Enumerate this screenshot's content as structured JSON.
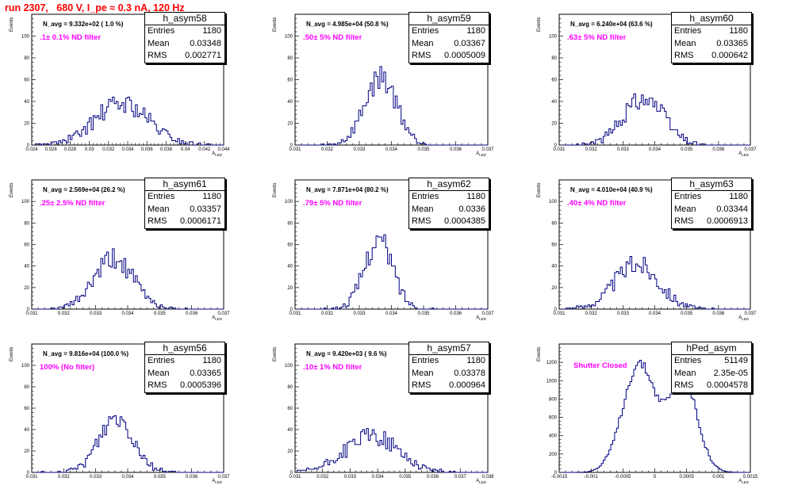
{
  "title": "run 2307,   680 V, I_pe ≈ 0.3 nA, 120 Hz",
  "chart_data": [
    {
      "type": "bar",
      "name": "h_asym58",
      "n_avg": "N_avg = 9.332e+02 ( 1.0 %)",
      "annotation": ".1± 0.1% ND filter",
      "ylabel": "Events",
      "xlabel": "A",
      "xlabel_sub": "LED",
      "stats": {
        "entries": "1180",
        "mean": "0.03348",
        "rms": "0.002771"
      },
      "xlim": [
        0.024,
        0.044
      ],
      "ylim": [
        0,
        120
      ],
      "xticks": [
        0.024,
        0.026,
        0.028,
        0.03,
        0.032,
        0.034,
        0.036,
        0.038,
        0.04,
        0.042,
        0.044
      ],
      "yticks": [
        0,
        20,
        40,
        60,
        80,
        100
      ],
      "gen": {
        "mean": 0.0334,
        "sigma": 0.0028,
        "peak": 38,
        "nbins": 100,
        "seed": 58
      }
    },
    {
      "type": "bar",
      "name": "h_asym59",
      "n_avg": "N_avg = 4.985e+04 (50.8 %)",
      "annotation": ".50± 5% ND filter",
      "ylabel": "Events",
      "xlabel": "A",
      "xlabel_sub": "LED",
      "stats": {
        "entries": "1180",
        "mean": "0.03367",
        "rms": "0.0005009"
      },
      "xlim": [
        0.031,
        0.037
      ],
      "ylim": [
        0,
        120
      ],
      "xticks": [
        0.031,
        0.032,
        0.033,
        0.034,
        0.035,
        0.036,
        0.037
      ],
      "yticks": [
        0,
        20,
        40,
        60,
        80,
        100
      ],
      "gen": {
        "mean": 0.03367,
        "sigma": 0.0005,
        "peak": 62,
        "nbins": 100,
        "seed": 59
      }
    },
    {
      "type": "bar",
      "name": "h_asym60",
      "n_avg": "N_avg = 6.240e+04 (63.6 %)",
      "annotation": ".63± 5% ND filter",
      "ylabel": "Events",
      "xlabel": "A",
      "xlabel_sub": "LED",
      "stats": {
        "entries": "1180",
        "mean": "0.03365",
        "rms": "0.000642"
      },
      "xlim": [
        0.031,
        0.037
      ],
      "ylim": [
        0,
        120
      ],
      "xticks": [
        0.031,
        0.032,
        0.033,
        0.034,
        0.035,
        0.036,
        0.037
      ],
      "yticks": [
        0,
        20,
        40,
        60,
        80,
        100
      ],
      "gen": {
        "mean": 0.03365,
        "sigma": 0.00064,
        "peak": 44,
        "nbins": 100,
        "seed": 60
      }
    },
    {
      "type": "bar",
      "name": "h_asym61",
      "n_avg": "N_avg = 2.569e+04 (26.2 %)",
      "annotation": ".25± 2.5% ND filter",
      "ylabel": "Events",
      "xlabel": "A",
      "xlabel_sub": "LED",
      "stats": {
        "entries": "1180",
        "mean": "0.03357",
        "rms": "0.0006171"
      },
      "xlim": [
        0.031,
        0.037
      ],
      "ylim": [
        0,
        120
      ],
      "xticks": [
        0.031,
        0.032,
        0.033,
        0.034,
        0.035,
        0.036,
        0.037
      ],
      "yticks": [
        0,
        20,
        40,
        60,
        80,
        100
      ],
      "gen": {
        "mean": 0.03357,
        "sigma": 0.00062,
        "peak": 46,
        "nbins": 100,
        "seed": 61
      }
    },
    {
      "type": "bar",
      "name": "h_asym62",
      "n_avg": "N_avg = 7.871e+04 (80.2 %)",
      "annotation": ".79± 5% ND filter",
      "ylabel": "Events",
      "xlabel": "A",
      "xlabel_sub": "LED",
      "stats": {
        "entries": "1180",
        "mean": "0.0336",
        "rms": "0.0004385"
      },
      "xlim": [
        0.031,
        0.037
      ],
      "ylim": [
        0,
        120
      ],
      "xticks": [
        0.031,
        0.032,
        0.033,
        0.034,
        0.035,
        0.036,
        0.037
      ],
      "yticks": [
        0,
        20,
        40,
        60,
        80,
        100
      ],
      "gen": {
        "mean": 0.0336,
        "sigma": 0.00044,
        "peak": 64,
        "nbins": 100,
        "seed": 62
      }
    },
    {
      "type": "bar",
      "name": "h_asym63",
      "n_avg": "N_avg = 4.010e+04 (40.9 %)",
      "annotation": ".40± 4% ND filter",
      "ylabel": "Events",
      "xlabel": "A",
      "xlabel_sub": "LED",
      "stats": {
        "entries": "1180",
        "mean": "0.03344",
        "rms": "0.0006913"
      },
      "xlim": [
        0.031,
        0.037
      ],
      "ylim": [
        0,
        120
      ],
      "xticks": [
        0.031,
        0.032,
        0.033,
        0.034,
        0.035,
        0.036,
        0.037
      ],
      "yticks": [
        0,
        20,
        40,
        60,
        80,
        100
      ],
      "gen": {
        "mean": 0.03344,
        "sigma": 0.00069,
        "peak": 42,
        "nbins": 100,
        "seed": 63
      }
    },
    {
      "type": "bar",
      "name": "h_asym56",
      "n_avg": "N_avg = 9.816e+04 (100.0 %)",
      "annotation": "100% (No filter)",
      "ylabel": "Events",
      "xlabel": "A",
      "xlabel_sub": "LED",
      "stats": {
        "entries": "1180",
        "mean": "0.03365",
        "rms": "0.0005396"
      },
      "xlim": [
        0.031,
        0.037
      ],
      "ylim": [
        0,
        120
      ],
      "xticks": [
        0.031,
        0.032,
        0.033,
        0.034,
        0.035,
        0.036,
        0.037
      ],
      "yticks": [
        0,
        20,
        40,
        60,
        80,
        100
      ],
      "gen": {
        "mean": 0.03365,
        "sigma": 0.00054,
        "peak": 52,
        "nbins": 100,
        "seed": 56
      }
    },
    {
      "type": "bar",
      "name": "h_asym57",
      "n_avg": "N_avg = 9.420e+03 ( 9.6 %)",
      "annotation": ".10± 1% ND filter",
      "ylabel": "Events",
      "xlabel": "A",
      "xlabel_sub": "LED",
      "stats": {
        "entries": "1180",
        "mean": "0.03378",
        "rms": "0.000964"
      },
      "xlim": [
        0.031,
        0.038
      ],
      "ylim": [
        0,
        120
      ],
      "xticks": [
        0.031,
        0.032,
        0.033,
        0.034,
        0.035,
        0.036,
        0.037,
        0.038
      ],
      "yticks": [
        0,
        20,
        40,
        60,
        80,
        100
      ],
      "gen": {
        "mean": 0.03378,
        "sigma": 0.00096,
        "peak": 34,
        "nbins": 100,
        "seed": 57
      }
    },
    {
      "type": "bar",
      "name": "hPed_asym",
      "n_avg": "",
      "annotation": "Shutter Closed",
      "ylabel": "Events",
      "xlabel": "A",
      "xlabel_sub": "LED",
      "stats": {
        "entries": "51149",
        "mean": "2.35e-05",
        "rms": "0.0004578"
      },
      "xlim": [
        -0.0015,
        0.0015
      ],
      "ylim": [
        0,
        1400
      ],
      "xticks": [
        -0.0015,
        -0.001,
        -0.0005,
        0,
        0.0005,
        0.001,
        0.0015
      ],
      "xtick_labels": [
        "-0.0015",
        "-0.001",
        "-0.0005",
        "0",
        "0.0005",
        "0.001",
        "0.0015"
      ],
      "yticks": [
        0,
        200,
        400,
        600,
        800,
        1000,
        1200
      ],
      "gen": {
        "bimodal": true,
        "m1": -0.00024,
        "m2": 0.00045,
        "sigma1": 0.00026,
        "sigma2": 0.00022,
        "a1": 1180,
        "a2": 1000,
        "nbins": 100,
        "seed": 64
      }
    }
  ]
}
